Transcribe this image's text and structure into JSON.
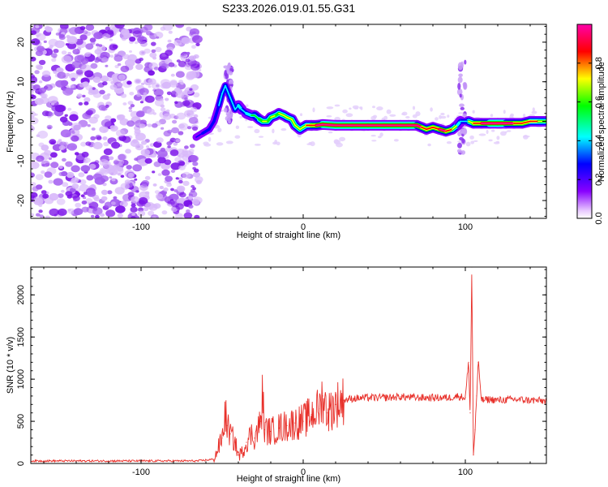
{
  "title": "S233.2026.019.01.55.G31",
  "chart_data": [
    {
      "type": "heatmap",
      "name": "spectrogram",
      "xlabel": "Height of straight line (km)",
      "ylabel": "Frequency (Hz)",
      "xlim": [
        -168,
        150
      ],
      "ylim": [
        -24.5,
        24.5
      ],
      "xticks": [
        -100,
        0,
        100
      ],
      "xtick_labels": [
        "-100",
        "0",
        "100"
      ],
      "yticks": [
        -20,
        -10,
        0,
        10,
        20
      ],
      "ytick_labels": [
        "-20",
        "-10",
        "0",
        "10",
        "20"
      ],
      "noise_region_x": [
        -168,
        -64
      ],
      "ridge": {
        "x": [
          -66,
          -62,
          -58,
          -55,
          -52,
          -50,
          -48,
          -45,
          -42,
          -40,
          -38,
          -35,
          -32,
          -30,
          -27,
          -25,
          -22,
          -20,
          -17,
          -15,
          -12,
          -10,
          -7,
          -5,
          -2,
          0,
          2,
          5,
          8,
          12,
          20,
          30,
          40,
          50,
          60,
          65,
          70,
          73,
          76,
          80,
          84,
          88,
          92,
          95,
          97,
          100,
          102,
          105,
          110,
          115,
          120,
          125,
          130,
          135,
          140,
          145,
          150
        ],
        "y": [
          -4,
          -3,
          -2,
          0,
          4,
          7,
          9,
          6,
          3,
          4,
          3,
          2,
          1.5,
          1.5,
          0.5,
          0,
          0,
          1,
          1.5,
          2,
          1.5,
          1,
          0.5,
          -1,
          -2,
          -1.5,
          -1,
          -1,
          -1,
          -0.8,
          -1,
          -1,
          -1,
          -1,
          -1,
          -1,
          -1,
          -1.5,
          -2,
          -1.5,
          -2,
          -2.5,
          -2,
          -1,
          0,
          0,
          0,
          -0.5,
          -0.5,
          -0.5,
          -0.5,
          -0.5,
          -0.5,
          -0.5,
          0,
          0,
          0
        ],
        "amplitude": [
          0.15,
          0.2,
          0.25,
          0.25,
          0.3,
          0.3,
          0.3,
          0.3,
          0.35,
          0.4,
          0.35,
          0.4,
          0.45,
          0.5,
          0.55,
          0.6,
          0.55,
          0.6,
          0.55,
          0.6,
          0.65,
          0.6,
          0.6,
          0.6,
          0.65,
          0.7,
          0.75,
          0.8,
          0.9,
          0.95,
          1.0,
          1.0,
          1.0,
          1.0,
          0.95,
          0.95,
          0.9,
          0.85,
          0.85,
          0.85,
          0.9,
          0.85,
          0.7,
          0.4,
          0.3,
          0.35,
          0.7,
          0.85,
          0.9,
          0.95,
          0.95,
          0.9,
          0.85,
          0.8,
          0.75,
          0.7,
          0.65
        ]
      },
      "vertical_streaks": [
        {
          "x": -46,
          "ylim": [
            0,
            15
          ]
        },
        {
          "x": 98,
          "ylim": [
            -9,
            15
          ]
        }
      ]
    },
    {
      "type": "colorbar",
      "name": "amplitude-colorbar",
      "label": "Normalized spectral amplitude",
      "range": [
        0.0,
        1.0
      ],
      "ticks": [
        0.0,
        0.2,
        0.4,
        0.6,
        0.8
      ],
      "tick_labels": [
        "0.0",
        "0.2",
        "0.4",
        "0.6",
        "0.8"
      ],
      "colormap": [
        "#ffffff",
        "#8800ff",
        "#0000ff",
        "#00ffff",
        "#00ff00",
        "#ffff00",
        "#ff0000",
        "#ff00aa"
      ]
    },
    {
      "type": "line",
      "name": "snr",
      "xlabel": "Height of straight line (km)",
      "ylabel": "SNR (10 * v/v)",
      "xlim": [
        -168,
        150
      ],
      "ylim": [
        0,
        2330
      ],
      "xticks": [
        -100,
        0,
        100
      ],
      "xtick_labels": [
        "-100",
        "0",
        "100"
      ],
      "yticks": [
        0,
        500,
        1000,
        1500,
        2000
      ],
      "ytick_labels": [
        "0",
        "500",
        "1000",
        "1500",
        "2000"
      ],
      "color": "#e8302a",
      "series": [
        {
          "name": "SNR",
          "x": [
            -168,
            -140,
            -120,
            -100,
            -80,
            -65,
            -55,
            -50,
            -48,
            -47,
            -45,
            -42,
            -40,
            -38,
            -35,
            -32,
            -30,
            -26,
            -25,
            -24,
            -20,
            -15,
            -10,
            -5,
            0,
            5,
            10,
            12,
            15,
            20,
            25,
            30,
            40,
            50,
            60,
            70,
            80,
            90,
            95,
            100,
            102,
            103,
            104,
            105,
            106,
            107,
            108,
            110,
            115,
            120,
            130,
            140,
            150
          ],
          "y": [
            30,
            30,
            30,
            30,
            30,
            30,
            50,
            300,
            600,
            450,
            350,
            250,
            100,
            120,
            250,
            350,
            300,
            500,
            850,
            400,
            380,
            420,
            450,
            480,
            500,
            580,
            650,
            800,
            600,
            700,
            750,
            770,
            780,
            780,
            790,
            780,
            780,
            780,
            800,
            780,
            1200,
            600,
            2330,
            100,
            400,
            800,
            1200,
            750,
            760,
            750,
            760,
            750,
            740
          ]
        }
      ]
    }
  ]
}
